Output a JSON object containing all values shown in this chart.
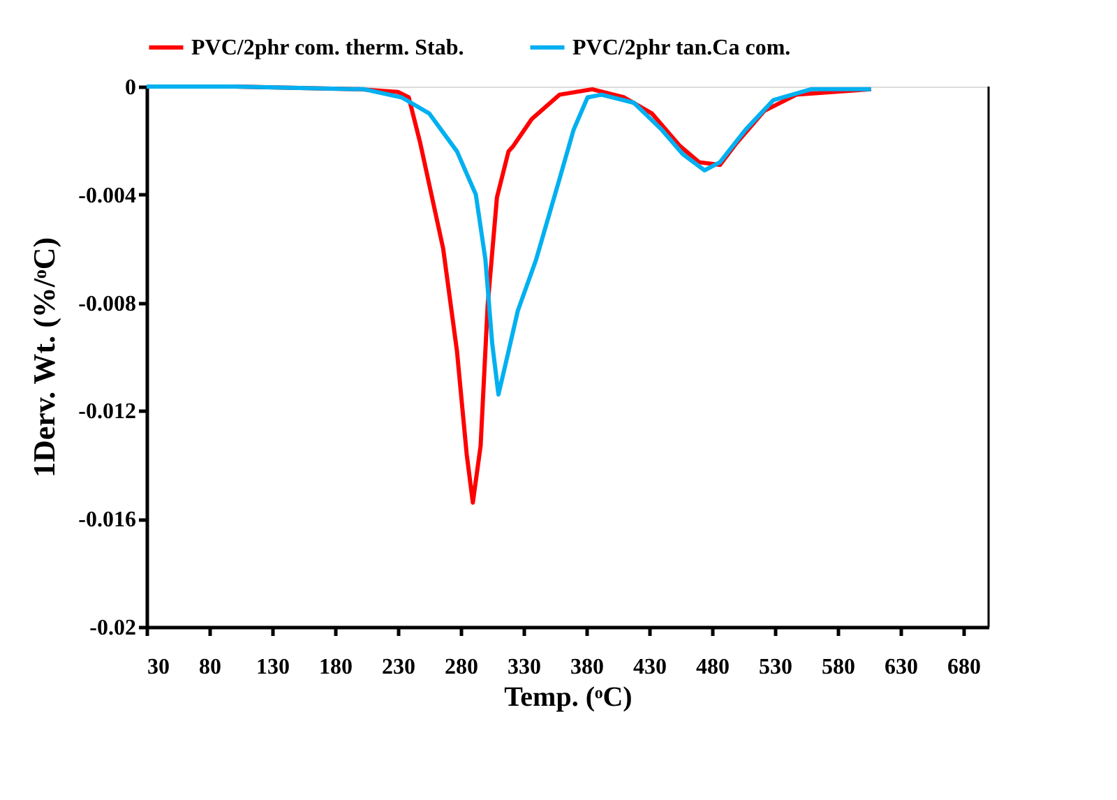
{
  "chart_data": {
    "type": "line",
    "xlabel": "Temp. (ᵒC)",
    "ylabel": "1Derv.  Wt. (%/ᵒC)",
    "xlim": [
      30,
      700
    ],
    "xticks": [
      30,
      80,
      130,
      180,
      230,
      280,
      330,
      380,
      430,
      480,
      530,
      580,
      630,
      680
    ],
    "ylim": [
      -0.02,
      0
    ],
    "yticks": [
      -0.02,
      -0.016,
      -0.012,
      -0.008,
      -0.004,
      0
    ],
    "grid": false,
    "legend": "top",
    "line_style": "solid",
    "marker": "none",
    "series": [
      {
        "name": "PVC/2phr com. therm. Stab.",
        "color": "#ff0000",
        "x": [
          30,
          100,
          200,
          230,
          238.6,
          247.8,
          266,
          277,
          284.7,
          289.6,
          295.8,
          301.4,
          308.8,
          318,
          321.8,
          336.5,
          358.7,
          384.6,
          410,
          432.2,
          454.4,
          469.6,
          486.3,
          499.3,
          521.5,
          547,
          606.5
        ],
        "values": [
          0,
          0,
          -0.0001,
          -0.0002,
          -0.0004,
          -0.0021,
          -0.006,
          -0.0098,
          -0.0136,
          -0.0154,
          -0.0133,
          -0.0081,
          -0.0041,
          -0.0024,
          -0.0022,
          -0.0012,
          -0.0003,
          -0.0001,
          -0.0004,
          -0.001,
          -0.0022,
          -0.0028,
          -0.0029,
          -0.0021,
          -0.0009,
          -0.0003,
          -0.0001
        ]
      },
      {
        "name": "PVC/2phr tan.Ca com.",
        "color": "#00b0f0",
        "x": [
          30,
          100,
          203,
          233,
          255,
          277,
          292,
          299.6,
          305,
          310,
          318,
          325.4,
          340,
          358.7,
          369.8,
          380.9,
          392,
          417.8,
          440,
          456.7,
          474,
          486.3,
          506.6,
          528.8,
          558.7,
          606.5
        ],
        "values": [
          0,
          0,
          -0.0001,
          -0.0004,
          -0.001,
          -0.0024,
          -0.004,
          -0.0064,
          -0.0095,
          -0.0114,
          -0.0098,
          -0.0083,
          -0.0064,
          -0.0034,
          -0.0016,
          -0.0004,
          -0.0003,
          -0.0006,
          -0.0016,
          -0.0025,
          -0.0031,
          -0.0028,
          -0.0016,
          -0.0005,
          -0.0001,
          -0.0001
        ]
      }
    ]
  }
}
